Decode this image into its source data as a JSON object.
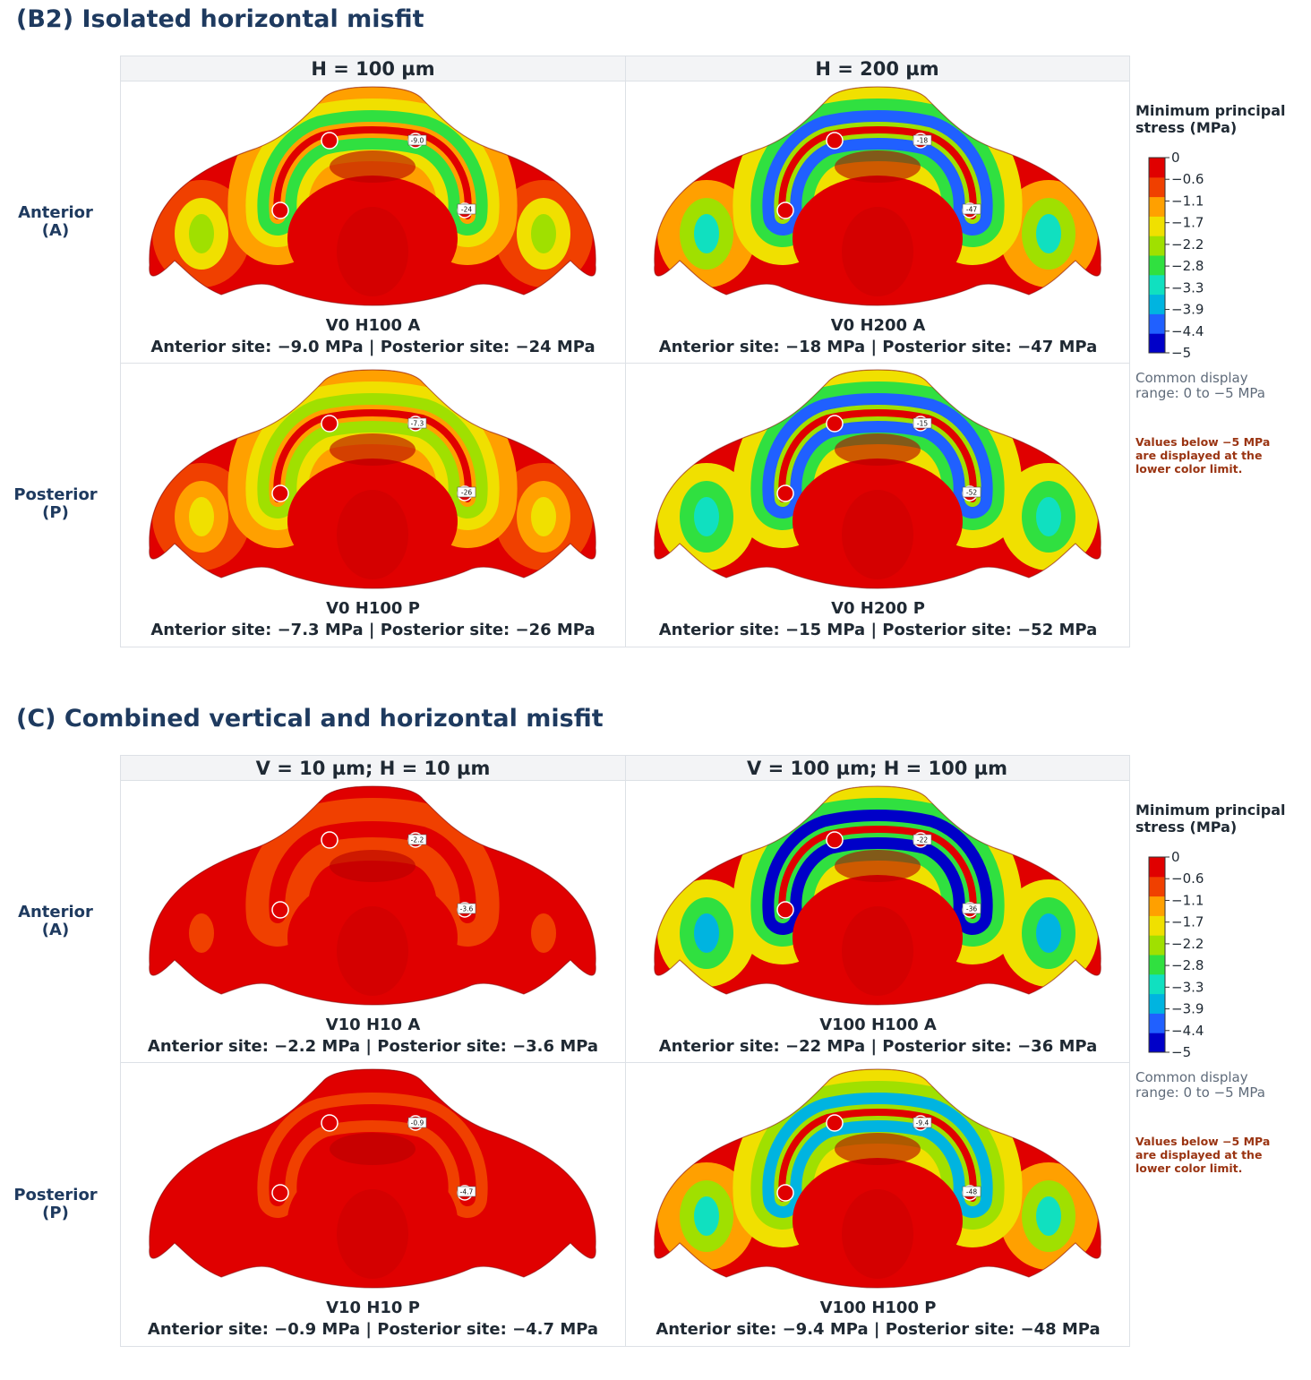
{
  "colors": {
    "title": "#1e3a5f",
    "note": "#9a3412",
    "colormap": [
      "#0000c8",
      "#2060ff",
      "#00b4e0",
      "#10e0c0",
      "#30e040",
      "#a0e000",
      "#f0e000",
      "#ffa000",
      "#f04000",
      "#e00000"
    ]
  },
  "legend": {
    "title_line1": "Minimum principal",
    "title_line2": "stress (MPa)",
    "ticks": [
      "0",
      "−0.6",
      "−1.1",
      "−1.7",
      "−2.2",
      "−2.8",
      "−3.3",
      "−3.9",
      "−4.4",
      "−5"
    ],
    "range_line1": "Common display",
    "range_line2": "range: 0 to −5 MPa",
    "note_line1": "Values below −5 MPa",
    "note_line2": "are displayed at the",
    "note_line3": "lower color limit."
  },
  "sections": [
    {
      "title": "(B2) Isolated horizontal misfit",
      "col_headers": [
        "H = 100 µm",
        "H = 200 µm"
      ],
      "row_labels": [
        {
          "line1": "Anterior",
          "line2": "(A)"
        },
        {
          "line1": "Posterior",
          "line2": "(P)"
        }
      ],
      "cells": [
        {
          "title": "V0 H100 A",
          "sub": "Anterior site: −9.0 MPa  |  Posterior site: −24 MPa",
          "tag_a": "-9.0",
          "tag_p": "-24",
          "intensity": 0.45
        },
        {
          "title": "V0 H200 A",
          "sub": "Anterior site: −18 MPa  |  Posterior site: −47 MPa",
          "tag_a": "-18",
          "tag_p": "-47",
          "intensity": 0.75
        },
        {
          "title": "V0 H100 P",
          "sub": "Anterior site: −7.3 MPa  |  Posterior site: −26 MPa",
          "tag_a": "-7.3",
          "tag_p": "-26",
          "intensity": 0.42
        },
        {
          "title": "V0 H200 P",
          "sub": "Anterior site: −15 MPa  |  Posterior site: −52 MPa",
          "tag_a": "-15",
          "tag_p": "-52",
          "intensity": 0.8
        }
      ]
    },
    {
      "title": "(C) Combined vertical and horizontal misfit",
      "col_headers": [
        "V = 10 µm; H = 10 µm",
        "V = 100 µm; H = 100 µm"
      ],
      "row_labels": [
        {
          "line1": "Anterior",
          "line2": "(A)"
        },
        {
          "line1": "Posterior",
          "line2": "(P)"
        }
      ],
      "cells": [
        {
          "title": "V10 H10 A",
          "sub": "Anterior site: −2.2 MPa  |  Posterior site: −3.6 MPa",
          "tag_a": "-2.2",
          "tag_p": "-3.6",
          "intensity": 0.08
        },
        {
          "title": "V100 H100 A",
          "sub": "Anterior site: −22 MPa  |  Posterior site: −36 MPa",
          "tag_a": "-22",
          "tag_p": "-36",
          "intensity": 0.85
        },
        {
          "title": "V10 H10 P",
          "sub": "Anterior site: −0.9 MPa  |  Posterior site: −4.7 MPa",
          "tag_a": "-0.9",
          "tag_p": "-4.7",
          "intensity": 0.05
        },
        {
          "title": "V100 H100 P",
          "sub": "Anterior site: −9.4 MPa  |  Posterior site: −48 MPa",
          "tag_a": "-9.4",
          "tag_p": "-48",
          "intensity": 0.7
        }
      ]
    }
  ]
}
